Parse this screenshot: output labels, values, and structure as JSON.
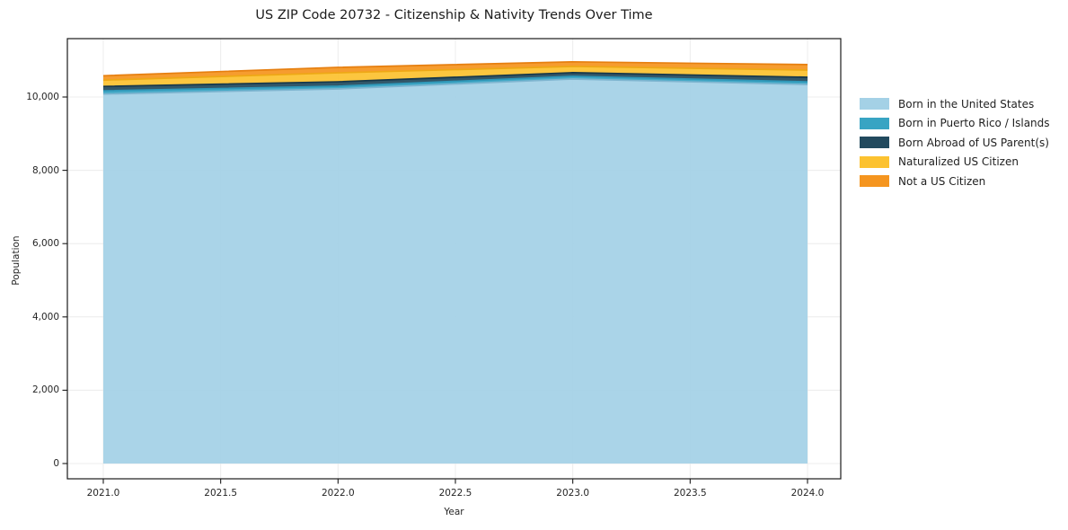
{
  "figure": {
    "title": "US ZIP Code 20732 - Citizenship & Nativity Trends Over Time"
  },
  "chart_data": {
    "type": "area",
    "stacked": true,
    "title": "US ZIP Code 20732 - Citizenship & Nativity Trends Over Time",
    "xlabel": "Year",
    "ylabel": "Population",
    "x": [
      2021,
      2022,
      2023,
      2024
    ],
    "series": [
      {
        "name": "Born in the United States",
        "color": "#a4d1e6",
        "edge_color": "#7fb5d0",
        "values": [
          10080,
          10220,
          10490,
          10340
        ]
      },
      {
        "name": "Born in Puerto Rico / Islands",
        "color": "#38a4c3",
        "edge_color": "#2e97b8",
        "values": [
          90,
          75,
          75,
          75
        ]
      },
      {
        "name": "Born Abroad of US Parent(s)",
        "color": "#224a5e",
        "edge_color": "#16374a",
        "values": [
          120,
          120,
          100,
          125
        ]
      },
      {
        "name": "Naturalized US Citizen",
        "color": "#fcc230",
        "edge_color": "#eea815",
        "values": [
          170,
          245,
          170,
          195
        ]
      },
      {
        "name": "Not a US Citizen",
        "color": "#f5951f",
        "edge_color": "#e67f10",
        "values": [
          120,
          150,
          125,
          150
        ]
      }
    ],
    "x_ticks": {
      "labels": [
        "2021.0",
        "2021.5",
        "2022.0",
        "2022.5",
        "2023.0",
        "2023.5",
        "2024.0"
      ],
      "values": [
        2021,
        2021.5,
        2022,
        2022.5,
        2023,
        2023.5,
        2024
      ]
    },
    "y_ticks": {
      "labels": [
        "0",
        "2,000",
        "4,000",
        "6,000",
        "8,000",
        "10,000"
      ],
      "values": [
        0,
        2000,
        4000,
        6000,
        8000,
        10000
      ]
    },
    "xlim": [
      2020.85,
      2024.15
    ],
    "ylim": [
      -550,
      11600
    ],
    "grid": true,
    "legend_position": "outside-right"
  }
}
